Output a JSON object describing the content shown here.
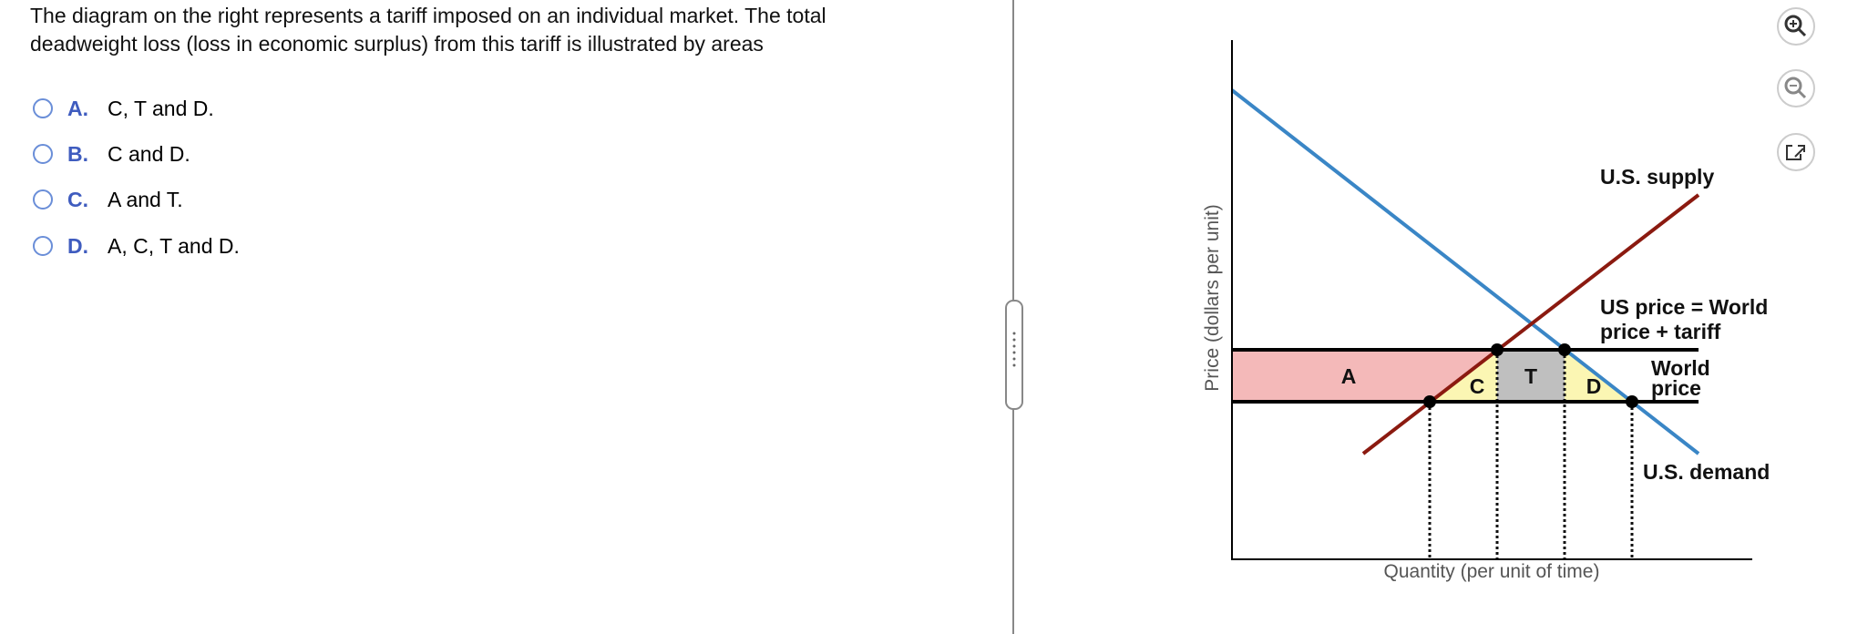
{
  "question": {
    "lines": [
      "The diagram on the right represents a tariff imposed on an individual market. The total",
      "deadweight loss (loss in economic surplus) from this tariff is illustrated by areas"
    ]
  },
  "options": [
    {
      "letter": "A.",
      "text": "C, T and D."
    },
    {
      "letter": "B.",
      "text": "C and D."
    },
    {
      "letter": "C.",
      "text": "A and T."
    },
    {
      "letter": "D.",
      "text": "A, C, T and D."
    }
  ],
  "diagram": {
    "y_axis_label": "Price (dollars per unit)",
    "x_axis_label": "Quantity (per unit of time)",
    "supply_label": "U.S. supply",
    "demand_label": "U.S. demand",
    "us_price_label": [
      "US price = World",
      "price + tariff"
    ],
    "world_price_label": [
      "World",
      "price"
    ],
    "areas": [
      "A",
      "C",
      "T",
      "D"
    ]
  }
}
